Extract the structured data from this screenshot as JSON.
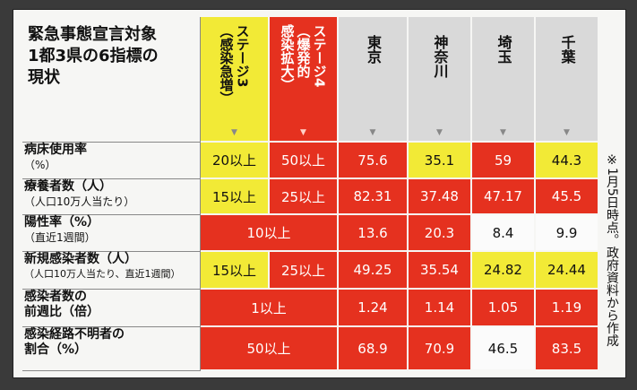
{
  "title": "緊急事態宣言対象\n1都3県の6指標の\n現状",
  "stage3": "ステージ3\n（感染急増）",
  "stage4": "ステージ4\n（爆発的\n感染拡大）",
  "prefectures": [
    "東京",
    "神奈川",
    "埼玉",
    "千葉"
  ],
  "note": "※1月5日時点。政府資料から作成",
  "rows": [
    {
      "label1": "病床使用率",
      "label2": "（%）",
      "s3": "20以上",
      "s4": "50以上",
      "v": [
        "75.6",
        "35.1",
        "59",
        "44.3"
      ]
    },
    {
      "label1": "療養者数（人）",
      "label2": "（人口10万人当たり）",
      "s3": "15以上",
      "s4": "25以上",
      "v": [
        "82.31",
        "37.48",
        "47.17",
        "45.5"
      ]
    },
    {
      "label1": "陽性率（%）",
      "label2": "（直近1週間）",
      "merged": "10以上",
      "v": [
        "13.6",
        "20.3",
        "8.4",
        "9.9"
      ]
    },
    {
      "label1": "新規感染者数（人）",
      "label2": "（人口10万人当たり、直近1週間）",
      "s3": "15以上",
      "s4": "25以上",
      "v": [
        "49.25",
        "35.54",
        "24.82",
        "24.44"
      ]
    },
    {
      "label1": "感染者数の",
      "label2": "前週比（倍）",
      "merged": "1以上",
      "v": [
        "1.24",
        "1.14",
        "1.05",
        "1.19"
      ]
    },
    {
      "label1": "感染経路不明者の",
      "label2": "割合（%）",
      "merged": "50以上",
      "v": [
        "68.9",
        "70.9",
        "46.5",
        "83.5"
      ]
    }
  ],
  "arrow": "▼",
  "colors": {
    "red": "#e5311f",
    "yellow": "#f2ea36",
    "white": "#fbfbfb",
    "header_gray": "#d9d9d9"
  }
}
